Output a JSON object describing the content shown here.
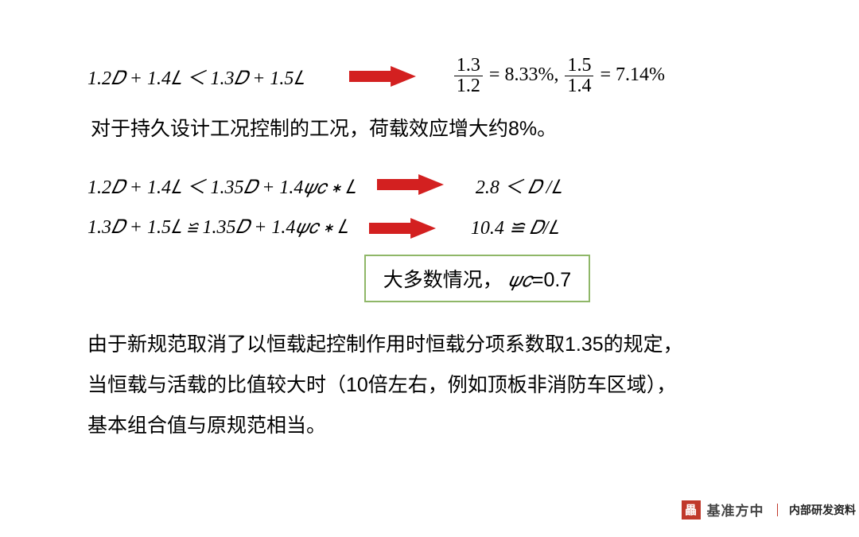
{
  "colors": {
    "arrow": "#d32020",
    "box_border": "#8fb768",
    "logo_bg": "#c0392b",
    "text": "#000000",
    "bg": "#ffffff"
  },
  "arrow_style": {
    "width": 84,
    "height": 30,
    "shaft_height": 14
  },
  "row1": {
    "left": "1.2𝐷 + 1.4𝐿 ＜ 1.3𝐷 + 1.5𝐿",
    "frac1_num": "1.3",
    "frac1_den": "1.2",
    "eq1": " = 8.33%, ",
    "frac2_num": "1.5",
    "frac2_den": "1.4",
    "eq2": " = 7.14%"
  },
  "text1": "对于持久设计工况控制的工况，荷载效应增大约8%。",
  "row2": {
    "left": "1.2𝐷 + 1.4𝐿 ＜ 1.35𝐷 + 1.4𝜓𝑐 ∗ 𝐿",
    "right": "2.8 ＜ 𝐷 /𝐿"
  },
  "row3": {
    "left": "1.3𝐷 + 1.5𝐿 ≌ 1.35𝐷 + 1.4𝜓𝑐 ∗ 𝐿",
    "right": "10.4 ≌ 𝐷/𝐿"
  },
  "box": {
    "pre": "大多数情况， ",
    "psi": "𝜓𝑐",
    "val": "=0.7"
  },
  "para": {
    "l1": "由于新规范取消了以恒载起控制作用时恒载分项系数取1.35的规定，",
    "l2": "当恒载与活载的比值较大时（10倍左右，例如顶板非消防车区域），",
    "l3": "基本组合值与原规范相当。"
  },
  "footer": {
    "logo_glyph": "畾",
    "brand": "基准方中",
    "tag": "内部研发资料"
  }
}
